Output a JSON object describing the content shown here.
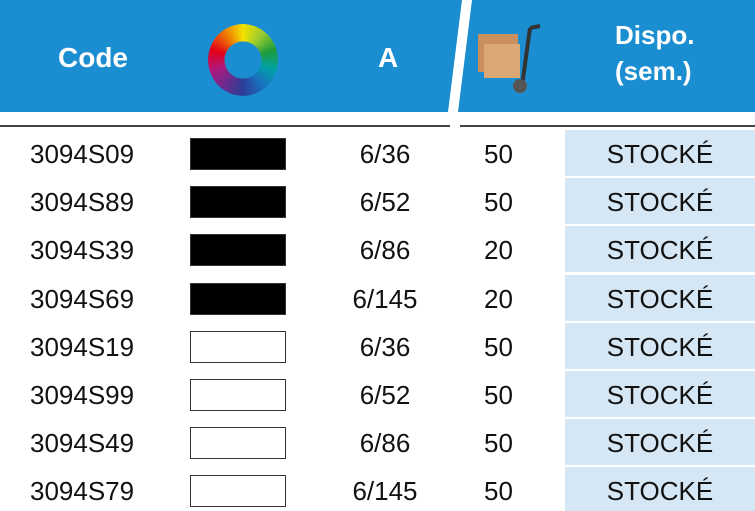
{
  "header": {
    "code": "Code",
    "a": "A",
    "dispo": [
      "Dispo.",
      "(sem.)"
    ]
  },
  "rows": [
    {
      "code": "3094S09",
      "swatch": "#000000",
      "a": "6/36",
      "qty": 50,
      "status": "STOCKÉ"
    },
    {
      "code": "3094S89",
      "swatch": "#000000",
      "a": "6/52",
      "qty": 50,
      "status": "STOCKÉ"
    },
    {
      "code": "3094S39",
      "swatch": "#000000",
      "a": "6/86",
      "qty": 20,
      "status": "STOCKÉ"
    },
    {
      "code": "3094S69",
      "swatch": "#000000",
      "a": "6/145",
      "qty": 20,
      "status": "STOCKÉ"
    },
    {
      "code": "3094S19",
      "swatch": "#ffffff",
      "a": "6/36",
      "qty": 50,
      "status": "STOCKÉ"
    },
    {
      "code": "3094S99",
      "swatch": "#ffffff",
      "a": "6/52",
      "qty": 50,
      "status": "STOCKÉ"
    },
    {
      "code": "3094S49",
      "swatch": "#ffffff",
      "a": "6/86",
      "qty": 50,
      "status": "STOCKÉ"
    },
    {
      "code": "3094S79",
      "swatch": "#ffffff",
      "a": "6/145",
      "qty": 50,
      "status": "STOCKÉ"
    }
  ]
}
